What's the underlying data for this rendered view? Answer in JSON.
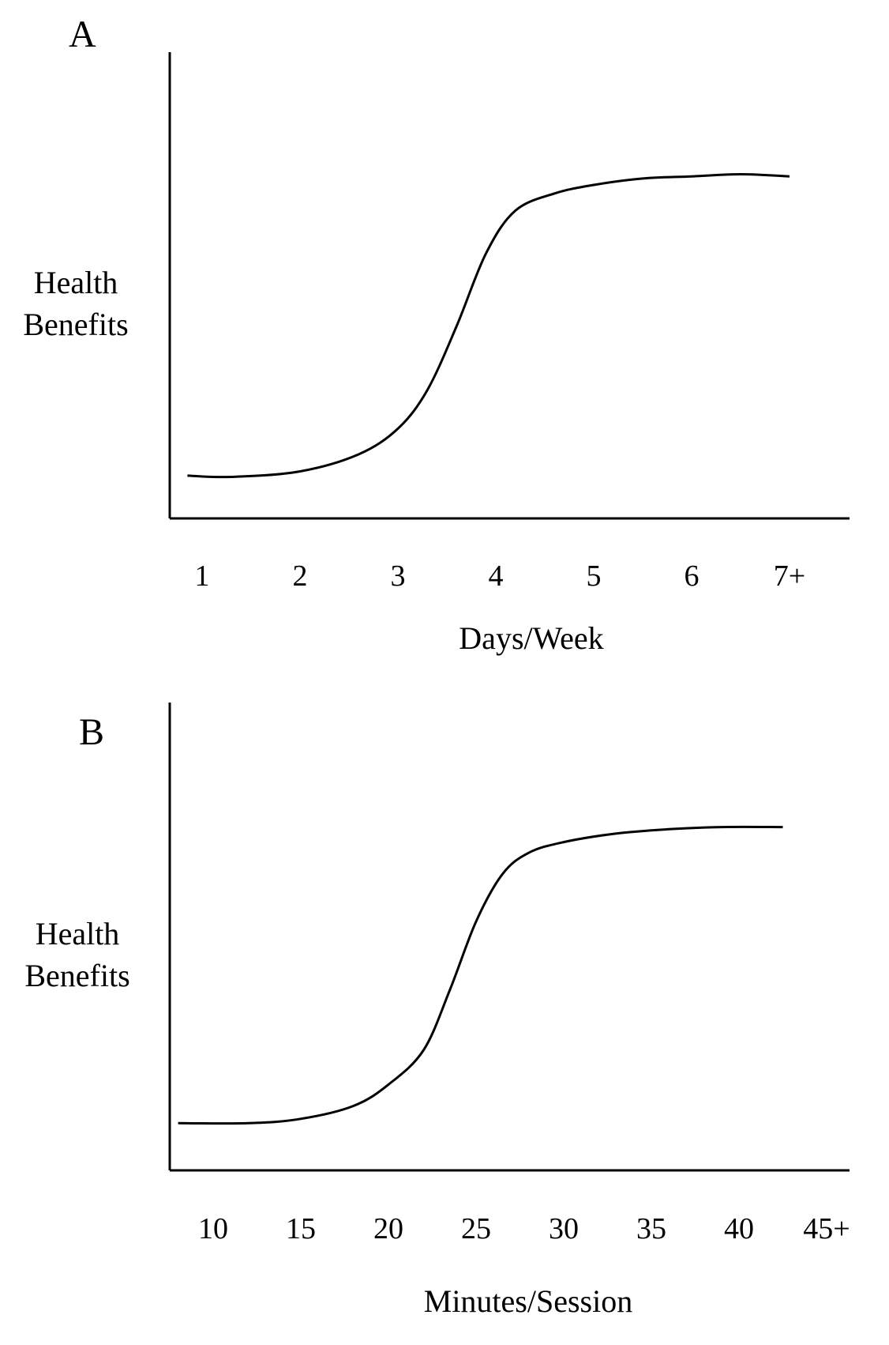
{
  "chart_data": [
    {
      "type": "line",
      "panel_label": "A",
      "ylabel": [
        "Health",
        "Benefits"
      ],
      "xlabel": "Days/Week",
      "categories": [
        "1",
        "2",
        "3",
        "4",
        "5",
        "6",
        "7+"
      ],
      "y_ticks_shown": false,
      "grid": false,
      "series": [
        {
          "name": "Health Benefits",
          "x": [
            0.85,
            1.3,
            2.0,
            2.6,
            3.0,
            3.3,
            3.6,
            3.9,
            4.2,
            4.6,
            5.0,
            5.5,
            6.0,
            6.5,
            7.0
          ],
          "values": [
            0.1,
            0.097,
            0.11,
            0.15,
            0.21,
            0.3,
            0.45,
            0.62,
            0.72,
            0.76,
            0.78,
            0.795,
            0.8,
            0.805,
            0.8
          ]
        }
      ],
      "ylim": [
        0,
        1
      ]
    },
    {
      "type": "line",
      "panel_label": "B",
      "ylabel": [
        "Health",
        "Benefits"
      ],
      "xlabel": "Minutes/Session",
      "categories": [
        "10",
        "15",
        "20",
        "25",
        "30",
        "35",
        "40",
        "45+"
      ],
      "y_ticks_shown": false,
      "grid": false,
      "series": [
        {
          "name": "Health Benefits",
          "x": [
            8,
            12,
            15,
            18,
            20,
            22,
            23.5,
            25,
            26.5,
            28,
            30,
            33,
            36,
            39,
            42.5
          ],
          "values": [
            0.11,
            0.11,
            0.12,
            0.15,
            0.2,
            0.28,
            0.42,
            0.58,
            0.69,
            0.74,
            0.765,
            0.785,
            0.795,
            0.8,
            0.8
          ]
        }
      ],
      "ylim": [
        0,
        1
      ]
    }
  ]
}
